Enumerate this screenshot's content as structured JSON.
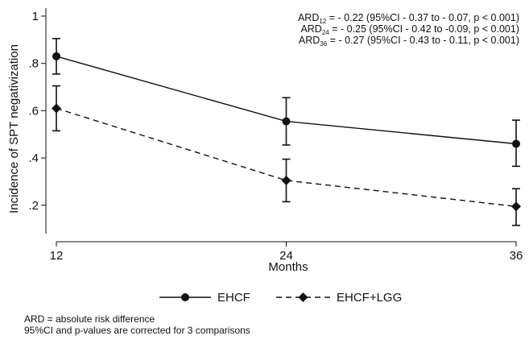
{
  "chart_data": {
    "type": "line",
    "x": [
      12,
      24,
      36
    ],
    "xlabel": "Months",
    "ylabel": "Incidence of SPT negativization",
    "xticks": [
      "12",
      "24",
      "36"
    ],
    "yticks": [
      {
        "value": 0.2,
        "label": ".2"
      },
      {
        "value": 0.4,
        "label": ".4"
      },
      {
        "value": 0.6,
        "label": ".6"
      },
      {
        "value": 0.8,
        "label": ".8"
      },
      {
        "value": 1.0,
        "label": "1"
      }
    ],
    "xlim": [
      12,
      36
    ],
    "ylim": [
      0.08,
      1.0
    ],
    "series": [
      {
        "name": "EHCF",
        "style": "solid",
        "marker": "circle",
        "values": [
          0.83,
          0.555,
          0.46
        ],
        "ci_low": [
          0.755,
          0.455,
          0.365
        ],
        "ci_high": [
          0.905,
          0.655,
          0.56
        ]
      },
      {
        "name": "EHCF+LGG",
        "style": "dashed",
        "marker": "diamond",
        "values": [
          0.61,
          0.305,
          0.195
        ],
        "ci_low": [
          0.515,
          0.215,
          0.115
        ],
        "ci_high": [
          0.705,
          0.395,
          0.27
        ]
      }
    ],
    "annotations": [
      {
        "pre": "ARD",
        "sub": "12",
        "post": " = - 0.22 (95%CI - 0.37 to - 0.07, p < 0.001)"
      },
      {
        "pre": "ARD",
        "sub": "24",
        "post": " = - 0.25 (95%CI - 0.42 to -0.09, p < 0.001)"
      },
      {
        "pre": "ARD",
        "sub": "36",
        "post": " = - 0.27 (95%CI - 0.43 to - 0.11, p < 0.001)"
      }
    ],
    "legend_position": "bottom"
  },
  "footnotes": {
    "line1": "ARD = absolute risk difference",
    "line2": "95%CI and p-values are corrected for 3 comparisons"
  },
  "colors": {
    "line": "#111111"
  }
}
